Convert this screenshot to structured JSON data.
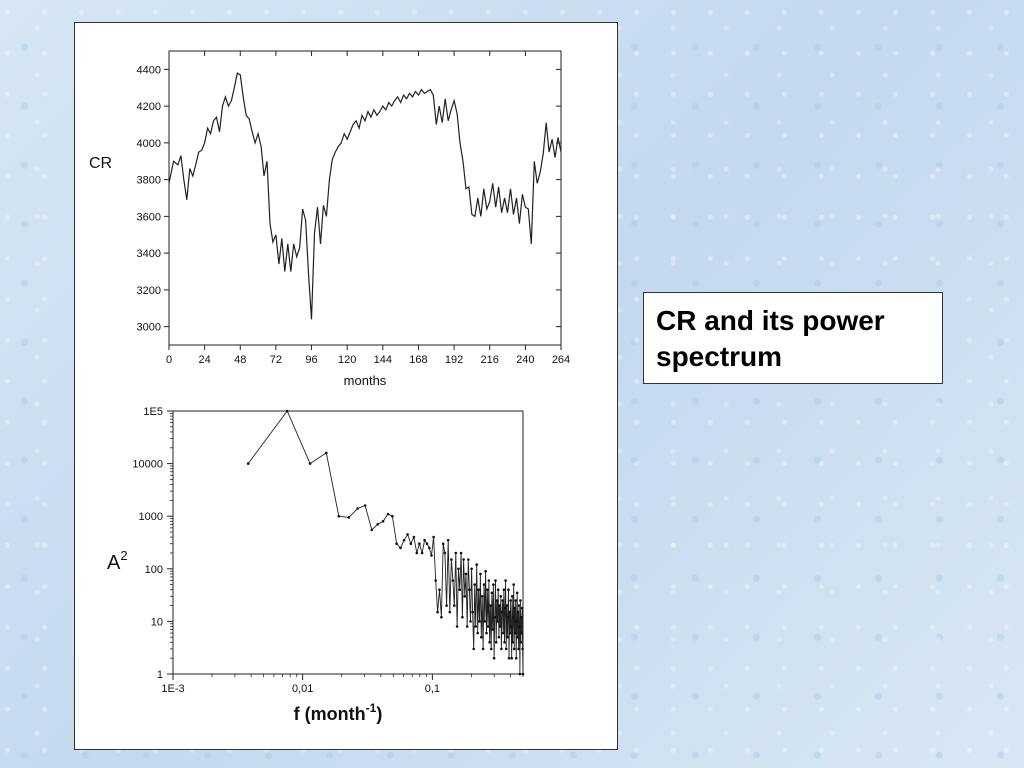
{
  "caption": "CR and its power spectrum",
  "chart_data": [
    {
      "type": "line",
      "ylabel": "CR",
      "xlabel": "months",
      "xlim": [
        0,
        264
      ],
      "ylim": [
        2900,
        4500
      ],
      "x_ticks": [
        "0",
        "24",
        "48",
        "72",
        "96",
        "120",
        "144",
        "168",
        "192",
        "216",
        "240",
        "264"
      ],
      "y_ticks": [
        "3000",
        "3200",
        "3400",
        "3600",
        "3800",
        "4000",
        "4200",
        "4400"
      ],
      "x": [
        0,
        3,
        6,
        8,
        10,
        12,
        14,
        16,
        18,
        20,
        22,
        24,
        26,
        28,
        30,
        32,
        34,
        36,
        38,
        40,
        42,
        44,
        46,
        48,
        50,
        52,
        54,
        56,
        58,
        60,
        62,
        64,
        66,
        68,
        70,
        72,
        74,
        76,
        78,
        80,
        82,
        84,
        86,
        88,
        90,
        92,
        94,
        96,
        98,
        100,
        102,
        104,
        106,
        108,
        110,
        112,
        114,
        116,
        118,
        120,
        122,
        124,
        126,
        128,
        130,
        132,
        134,
        136,
        138,
        140,
        142,
        144,
        146,
        148,
        150,
        152,
        154,
        156,
        158,
        160,
        162,
        164,
        166,
        168,
        170,
        172,
        174,
        176,
        178,
        180,
        182,
        184,
        186,
        188,
        190,
        192,
        194,
        196,
        198,
        200,
        202,
        204,
        206,
        208,
        210,
        212,
        214,
        216,
        218,
        220,
        222,
        224,
        226,
        228,
        230,
        232,
        234,
        236,
        238,
        240,
        242,
        244,
        246,
        248,
        250,
        252,
        254,
        256,
        258,
        260,
        262,
        264
      ],
      "y": [
        3780,
        3900,
        3880,
        3930,
        3800,
        3690,
        3860,
        3820,
        3880,
        3950,
        3960,
        4000,
        4080,
        4050,
        4120,
        4140,
        4060,
        4200,
        4250,
        4200,
        4230,
        4300,
        4380,
        4370,
        4250,
        4150,
        4130,
        4060,
        4000,
        4050,
        3980,
        3820,
        3900,
        3560,
        3460,
        3500,
        3340,
        3480,
        3300,
        3450,
        3300,
        3450,
        3380,
        3430,
        3640,
        3580,
        3280,
        3040,
        3510,
        3650,
        3450,
        3660,
        3600,
        3800,
        3910,
        3950,
        3980,
        4000,
        4050,
        4020,
        4060,
        4100,
        4120,
        4080,
        4150,
        4120,
        4170,
        4140,
        4180,
        4150,
        4170,
        4200,
        4180,
        4220,
        4200,
        4230,
        4250,
        4220,
        4260,
        4240,
        4270,
        4250,
        4280,
        4260,
        4290,
        4270,
        4280,
        4290,
        4260,
        4100,
        4200,
        4110,
        4240,
        4120,
        4180,
        4230,
        4160,
        4000,
        3900,
        3750,
        3760,
        3610,
        3600,
        3700,
        3600,
        3750,
        3640,
        3680,
        3780,
        3650,
        3760,
        3620,
        3700,
        3620,
        3750,
        3610,
        3700,
        3560,
        3720,
        3650,
        3640,
        3450,
        3900,
        3780,
        3840,
        3940,
        4110,
        3950,
        4020,
        3920,
        4030,
        3950
      ],
      "series": []
    },
    {
      "type": "line",
      "ylabel": "A",
      "ylabel_sup": "2",
      "xlabel": "f (month",
      "xlabel_sup": "-1",
      "xlabel_tail": ")",
      "x_scale": "log",
      "y_scale": "log",
      "xlim": [
        0.001,
        0.5
      ],
      "ylim": [
        1,
        100000
      ],
      "x_ticks": [
        "1E-3",
        "0,01",
        "0,1"
      ],
      "y_ticks": [
        "1",
        "10",
        "100",
        "1000",
        "10000",
        "1E5"
      ],
      "x": [
        0.0038,
        0.0076,
        0.0114,
        0.0152,
        0.019,
        0.0227,
        0.0265,
        0.0303,
        0.0341,
        0.0379,
        0.0417,
        0.0455,
        0.0492,
        0.053,
        0.0568,
        0.0606,
        0.0644,
        0.0682,
        0.072,
        0.0758,
        0.0795,
        0.0833,
        0.0871,
        0.0909,
        0.0947,
        0.0985,
        0.1023,
        0.1061,
        0.1098,
        0.1136,
        0.1174,
        0.1212,
        0.125,
        0.1288,
        0.1326,
        0.1364,
        0.1402,
        0.1439,
        0.1477,
        0.1515,
        0.1553,
        0.1591,
        0.1629,
        0.1667,
        0.1705,
        0.1742,
        0.178,
        0.1818,
        0.1856,
        0.1894,
        0.1932,
        0.197,
        0.2008,
        0.2045,
        0.2083,
        0.2121,
        0.2159,
        0.2197,
        0.2235,
        0.2273,
        0.2311,
        0.2348,
        0.2386,
        0.2424,
        0.2462,
        0.25,
        0.2538,
        0.2576,
        0.2614,
        0.2652,
        0.2689,
        0.2727,
        0.2765,
        0.2803,
        0.2841,
        0.2879,
        0.2917,
        0.2955,
        0.2992,
        0.303,
        0.3068,
        0.3106,
        0.3144,
        0.3182,
        0.322,
        0.3258,
        0.3295,
        0.3333,
        0.3371,
        0.3409,
        0.3447,
        0.3485,
        0.3523,
        0.3561,
        0.3598,
        0.3636,
        0.3674,
        0.3712,
        0.375,
        0.3788,
        0.3826,
        0.3864,
        0.3902,
        0.3939,
        0.3977,
        0.4015,
        0.4053,
        0.4091,
        0.4129,
        0.4167,
        0.4205,
        0.4242,
        0.428,
        0.4318,
        0.4356,
        0.4394,
        0.4432,
        0.447,
        0.4508,
        0.4545,
        0.4583,
        0.4621,
        0.4659,
        0.4697,
        0.4735,
        0.4773,
        0.4811,
        0.4848,
        0.4886,
        0.4924,
        0.4962,
        0.5
      ],
      "y": [
        10000,
        100000,
        10000,
        16000,
        1000,
        950,
        1400,
        1600,
        550,
        700,
        800,
        1100,
        1000,
        300,
        250,
        350,
        450,
        300,
        400,
        200,
        300,
        200,
        350,
        300,
        250,
        180,
        400,
        60,
        15,
        40,
        12,
        300,
        200,
        20,
        350,
        15,
        150,
        60,
        20,
        200,
        8,
        100,
        40,
        200,
        12,
        150,
        30,
        80,
        8,
        150,
        40,
        10,
        100,
        15,
        3,
        50,
        8,
        120,
        6,
        40,
        10,
        80,
        5,
        30,
        3,
        50,
        10,
        90,
        6,
        40,
        8,
        60,
        4,
        20,
        3,
        35,
        7,
        50,
        2,
        12,
        60,
        4,
        25,
        10,
        40,
        5,
        20,
        8,
        30,
        3,
        15,
        25,
        6,
        40,
        4,
        18,
        60,
        3,
        20,
        5,
        12,
        40,
        2,
        15,
        6,
        25,
        8,
        2,
        30,
        4,
        12,
        50,
        3,
        18,
        6,
        25,
        2,
        10,
        35,
        5,
        15,
        3,
        20,
        8,
        1,
        25,
        4,
        12,
        6,
        18,
        3,
        1
      ]
    }
  ]
}
